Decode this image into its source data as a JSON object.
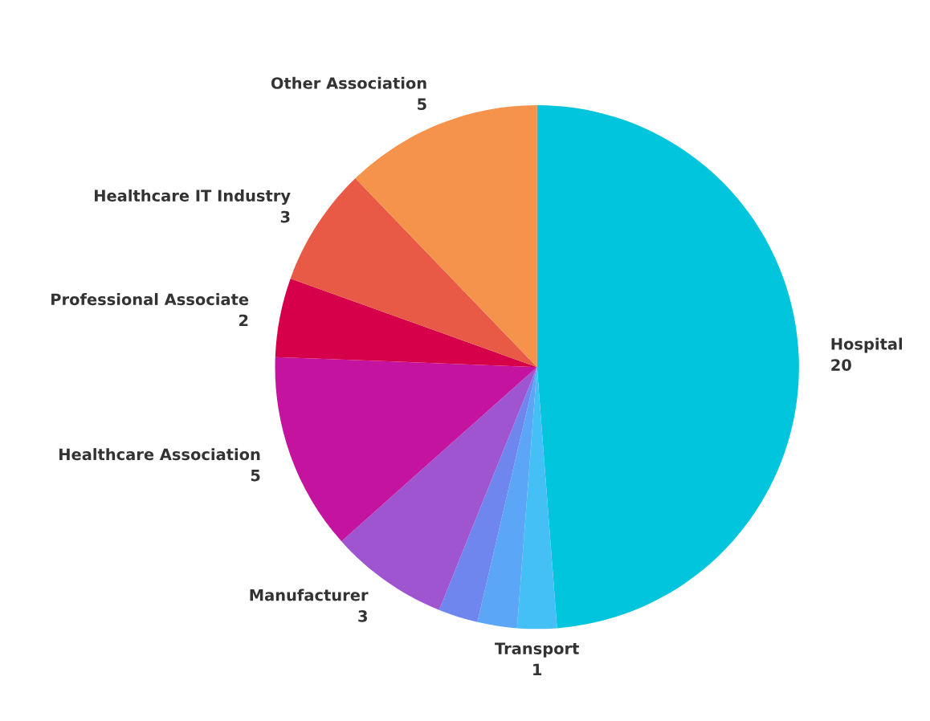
{
  "chart_data": {
    "type": "pie",
    "categories": [
      "Hospital",
      "Transport",
      null,
      null,
      "Manufacturer",
      "Healthcare Association",
      "Professional Associate",
      "Healthcare IT Industry",
      "Other Association"
    ],
    "values": [
      20,
      1,
      1,
      1,
      3,
      5,
      2,
      3,
      5
    ],
    "value_labels": [
      "20",
      "1",
      null,
      null,
      "3",
      "5",
      "2",
      "3",
      "5"
    ],
    "colors": [
      "#00c5dc",
      "#45c0f7",
      "#5ca6f8",
      "#6f86ee",
      "#a055d0",
      "#c4139f",
      "#d6004a",
      "#e85a45",
      "#f5924c"
    ]
  }
}
